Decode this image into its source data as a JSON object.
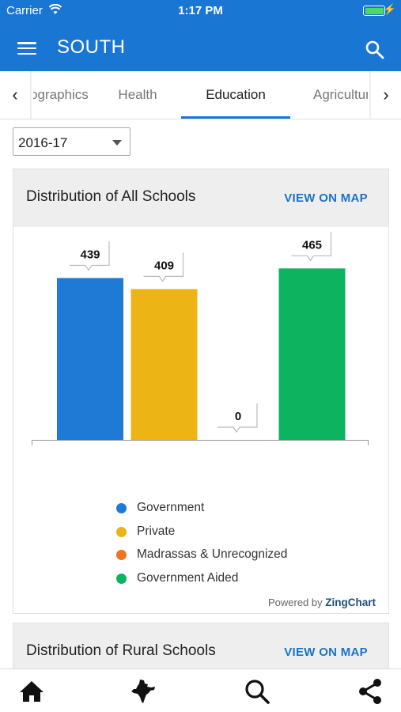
{
  "status_bar": {
    "carrier": "Carrier",
    "time": "1:17 PM"
  },
  "app_bar": {
    "title": "SOUTH"
  },
  "tabs": {
    "items": [
      {
        "label": "Demographics"
      },
      {
        "label": "Health"
      },
      {
        "label": "Education"
      },
      {
        "label": "Agriculture"
      }
    ],
    "active": "Education"
  },
  "year_select": {
    "value": "2016-17"
  },
  "cards": [
    {
      "title": "Distribution of All Schools",
      "link": "VIEW ON MAP"
    },
    {
      "title": "Distribution of Rural Schools",
      "link": "VIEW ON MAP"
    }
  ],
  "chart_data": {
    "type": "bar",
    "categories": [
      "Government",
      "Private",
      "Madrassas & Unrecognized",
      "Government Aided"
    ],
    "values": [
      439,
      409,
      0,
      465
    ],
    "colors": [
      "#1f7ad6",
      "#ecb515",
      "#ee7420",
      "#0db35e"
    ],
    "ylim": [
      0,
      500
    ],
    "legend_position": "bottom",
    "data_labels": [
      "439",
      "409",
      "0",
      "465"
    ]
  },
  "legend": [
    {
      "label": "Government",
      "color": "#1f7ad6"
    },
    {
      "label": "Private",
      "color": "#ecb515"
    },
    {
      "label": "Madrassas & Unrecognized",
      "color": "#ee7420"
    },
    {
      "label": "Government Aided",
      "color": "#0db35e"
    }
  ],
  "powered_by": {
    "prefix": "Powered by",
    "brand": "ZingChart"
  },
  "bottom_nav": [
    "home-icon",
    "india-map-icon",
    "search-icon",
    "share-icon"
  ]
}
